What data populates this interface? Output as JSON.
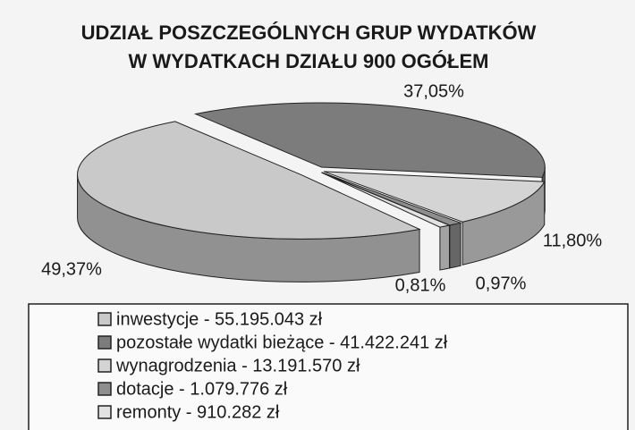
{
  "chart_data": {
    "type": "pie",
    "title": [
      "UDZIAŁ POSZCZEGÓLNYCH GRUP WYDATKÓW",
      "W WYDATKACH DZIAŁU 900 OGÓŁEM"
    ],
    "categories": [
      "inwestycje - 55.195.043 zł",
      "pozostałe wydatki bieżące - 41.422.241 zł",
      "wynagrodzenia - 13.191.570 zł",
      "dotacje - 1.079.776 zł",
      "remonty - 910.282 zł"
    ],
    "values": [
      49.37,
      37.05,
      11.8,
      0.97,
      0.81
    ],
    "value_labels": [
      "49,37%",
      "37,05%",
      "11,80%",
      "0,97%",
      "0,81%"
    ],
    "colors": [
      "#c9c9c9",
      "#7c7c7c",
      "#d4d4d4",
      "#8e8e8e",
      "#e2e2e2"
    ]
  }
}
